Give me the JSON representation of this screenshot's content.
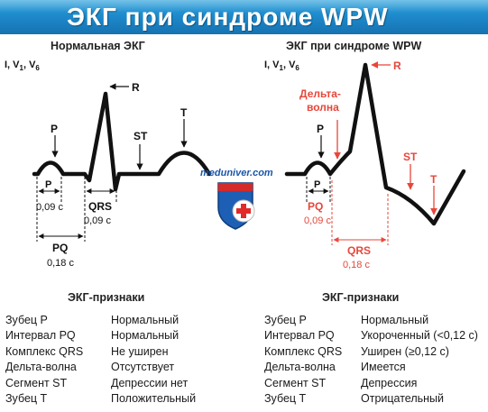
{
  "banner": {
    "title": "ЭКГ при синдроме WPW",
    "color_top": "#2aa0dc",
    "color_bottom": "#1672b0"
  },
  "left": {
    "title": "Нормальная ЭКГ",
    "leads": "I, V1, V6",
    "labels": {
      "r": "R",
      "p_top": "P",
      "p_interval": "P",
      "p_duration": "0,09 с",
      "st": "ST",
      "t": "T",
      "qrs": "QRS",
      "qrs_duration": "0,09 с",
      "pq": "PQ",
      "pq_duration": "0,18 с"
    }
  },
  "right": {
    "title": "ЭКГ при синдроме WPW",
    "leads": "I, V1, V6",
    "labels": {
      "r": "R",
      "delta_wave": "Дельта-волна",
      "p_top": "P",
      "p_interval": "P",
      "st": "ST",
      "t": "T",
      "pq": "PQ",
      "pq_duration": "0,09 с",
      "qrs": "QRS",
      "qrs_duration": "0,18 с"
    },
    "accent_color": "#e8463a"
  },
  "logo": {
    "text": "meduniver.com",
    "icon": "medical-cross-shield-icon"
  },
  "signs_left": {
    "title": "ЭКГ-признаки",
    "rows": [
      {
        "name": "Зубец P",
        "value": "Нормальный"
      },
      {
        "name": "Интервал PQ",
        "value": "Нормальный"
      },
      {
        "name": "Комплекс QRS",
        "value": "Не уширен"
      },
      {
        "name": "Дельта-волна",
        "value": "Отсутствует"
      },
      {
        "name": "Сегмент ST",
        "value": "Депрессии нет"
      },
      {
        "name": "Зубец T",
        "value": "Положительный"
      }
    ]
  },
  "signs_right": {
    "title": "ЭКГ-признаки",
    "rows": [
      {
        "name": "Зубец P",
        "value": "Нормальный"
      },
      {
        "name": "Интервал PQ",
        "value": "Укороченный (<0,12 с)"
      },
      {
        "name": "Комплекс QRS",
        "value": "Уширен (≥0,12 с)"
      },
      {
        "name": "Дельта-волна",
        "value": "Имеется"
      },
      {
        "name": "Сегмент ST",
        "value": "Депрессия"
      },
      {
        "name": "Зубец T",
        "value": "Отрицательный"
      }
    ]
  }
}
